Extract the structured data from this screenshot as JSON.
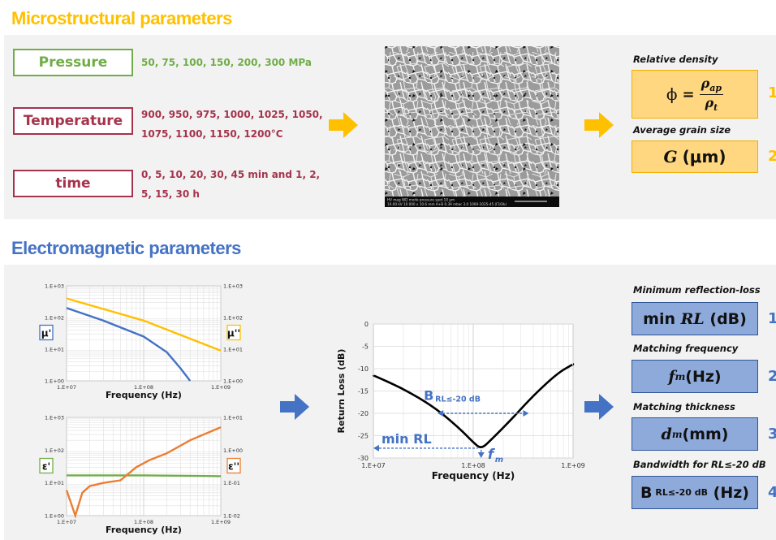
{
  "micro": {
    "title": "Microstructural parameters",
    "inputs": [
      {
        "label": "Pressure",
        "values": [
          "50, 75, 100, 150, 200, 300 MPa"
        ]
      },
      {
        "label": "Temperature",
        "values": [
          "900, 950, 975, 1000, 1025, 1050,",
          "1075, 1100, 1150, 1200°C"
        ]
      },
      {
        "label": "time",
        "values": [
          "0, 5, 10, 20, 30, 45 min and 1, 2,",
          "5, 15, 30 h"
        ]
      }
    ],
    "sem_bar": "HV   mag   WD   mode  pressure  spot     10 μm",
    "sem_bar2": "10.00 kV  10 000 x  10.6 mm  A+B  0.39 mbar  3.0        1000-1025-45 (F10ik)",
    "outputs": [
      {
        "label": "Relative density",
        "num": "1"
      },
      {
        "label": "Average grain size",
        "num": "2"
      }
    ],
    "formula_phi": "ϕ",
    "formula_eq": "=",
    "formula_num": "ρ",
    "formula_num_sub": "ap",
    "formula_den": "ρ",
    "formula_den_sub": "t",
    "grain_G": "G",
    "grain_unit": "(μm)"
  },
  "em": {
    "title": "Electromagnetic parameters",
    "outputs": [
      {
        "label": "Minimum reflection-loss",
        "num": "1"
      },
      {
        "label": "Matching frequency",
        "num": "2"
      },
      {
        "label": "Matching thickness",
        "num": "3"
      },
      {
        "label": "Bandwidth for RL≤-20 dB",
        "num": "4"
      }
    ],
    "out1_a": "min ",
    "out1_b": "RL",
    "out1_c": " (dB)",
    "out2_a": "f",
    "out2_sub": "m",
    "out2_c": "(Hz)",
    "out3_a": "d",
    "out3_sub": "m",
    "out3_c": "(mm)",
    "out4_a": "B",
    "out4_sub": " RL≤-20 dB",
    "out4_c": " (Hz)"
  },
  "chart_data": [
    {
      "type": "line",
      "xlabel": "Frequency (Hz)",
      "x_ticks": [
        "1.E+07",
        "1.E+08",
        "1.E+09"
      ],
      "y_ticks": [
        "1.E+00",
        "1.E+01",
        "1.E+02",
        "1.E+03"
      ],
      "y2_ticks": [
        "1.E+00",
        "1.E+01",
        "1.E+02",
        "1.E+03"
      ],
      "log_x": true,
      "log_y": true,
      "ylabel": "μ'",
      "y2label": "μ''",
      "series": [
        {
          "name": "μ'",
          "color": "#4472c4",
          "points": [
            [
              10000000.0,
              200
            ],
            [
              30000000.0,
              80
            ],
            [
              100000000.0,
              25
            ],
            [
              200000000.0,
              8
            ],
            [
              300000000.0,
              2.5
            ],
            [
              400000000.0,
              1
            ]
          ]
        },
        {
          "name": "μ''",
          "color": "#ffc000",
          "points": [
            [
              10000000.0,
              400
            ],
            [
              100000000.0,
              80
            ],
            [
              1000000000.0,
              9
            ]
          ]
        }
      ]
    },
    {
      "type": "line",
      "xlabel": "Frequency (Hz)",
      "x_ticks": [
        "1.E+07",
        "1.E+08",
        "1.E+09"
      ],
      "y_ticks": [
        "1.E+00",
        "1.E+01",
        "1.E+02",
        "1.E+03"
      ],
      "y2_ticks": [
        "1.E-02",
        "1.E-01",
        "1.E+00",
        "1.E+01"
      ],
      "log_x": true,
      "log_y": true,
      "ylabel": "ε'",
      "y2label": "ε''",
      "series": [
        {
          "name": "ε'",
          "color": "#70ad47",
          "points": [
            [
              10000000.0,
              17
            ],
            [
              100000000.0,
              17
            ],
            [
              1000000000.0,
              16
            ]
          ]
        },
        {
          "name": "ε''",
          "color": "#ed7d31",
          "points": [
            [
              10000000.0,
              0.06
            ],
            [
              13000000.0,
              0.005
            ],
            [
              16000000.0,
              0.05
            ],
            [
              20000000.0,
              0.08
            ],
            [
              30000000.0,
              0.1
            ],
            [
              50000000.0,
              0.12
            ],
            [
              80000000.0,
              0.3
            ],
            [
              120000000.0,
              0.5
            ],
            [
              200000000.0,
              0.8
            ],
            [
              400000000.0,
              2
            ],
            [
              1000000000.0,
              5
            ]
          ]
        }
      ]
    },
    {
      "type": "line",
      "ylabel": "Return Loss (dB)",
      "xlabel": "Frequency (Hz)",
      "x_ticks": [
        "1.E+07",
        "1.E+08",
        "1.E+09"
      ],
      "y_ticks": [
        "0",
        "-5",
        "-10",
        "-15",
        "-20",
        "-25",
        "-30"
      ],
      "log_x": true,
      "ylim": [
        -30,
        0
      ],
      "series": [
        {
          "name": "Return Loss",
          "color": "#000000",
          "points": [
            [
              10000000.0,
              -11.5
            ],
            [
              20000000.0,
              -14.5
            ],
            [
              40000000.0,
              -18.5
            ],
            [
              70000000.0,
              -23
            ],
            [
              100000000.0,
              -26.5
            ],
            [
              120000000.0,
              -28
            ],
            [
              150000000.0,
              -26
            ],
            [
              250000000.0,
              -21
            ],
            [
              400000000.0,
              -16
            ],
            [
              700000000.0,
              -11
            ],
            [
              1000000000.0,
              -9
            ]
          ]
        }
      ],
      "annotations": [
        {
          "text": "B",
          "sub": "RL≤-20 dB"
        },
        {
          "text": "min RL"
        },
        {
          "text": "f",
          "sub": "m"
        }
      ]
    }
  ]
}
